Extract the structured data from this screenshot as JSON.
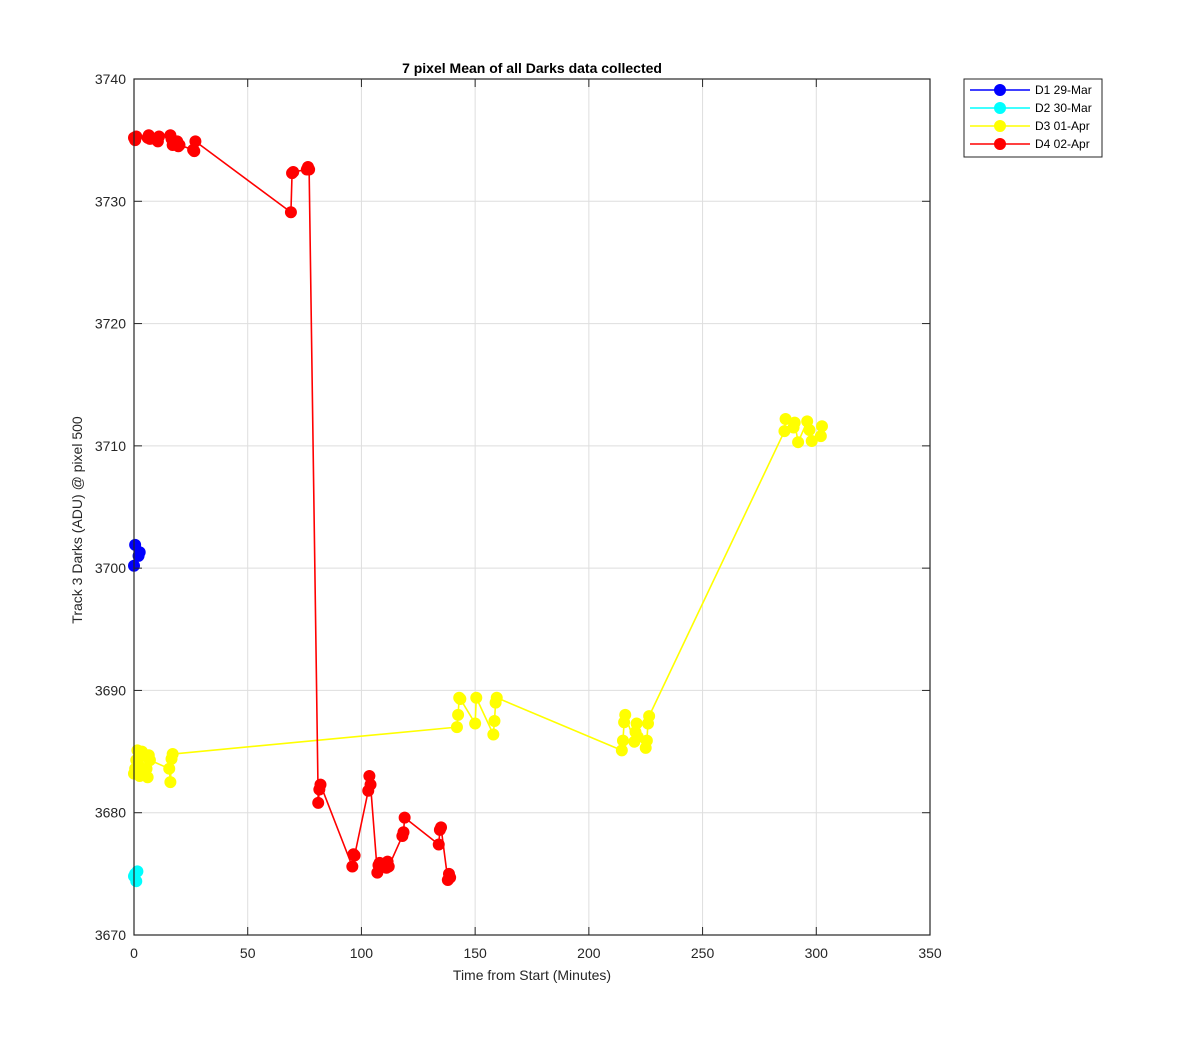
{
  "chart_data": {
    "type": "line",
    "title": "7 pixel Mean of all Darks data collected",
    "xlabel": "Time from Start (Minutes)",
    "ylabel": "Track 3 Darks (ADU) @ pixel 500",
    "xlim": [
      0,
      350
    ],
    "ylim": [
      3670,
      3740
    ],
    "xticks": [
      0,
      50,
      100,
      150,
      200,
      250,
      300,
      350
    ],
    "yticks": [
      3670,
      3680,
      3690,
      3700,
      3710,
      3720,
      3730,
      3740
    ],
    "grid": true,
    "legend_position": "outside-top-right",
    "series": [
      {
        "name": "D1 29-Mar",
        "color": "#0000ff",
        "x": [
          0,
          0.5,
          2,
          2.5
        ],
        "y": [
          3700.2,
          3701.9,
          3701.0,
          3701.3
        ]
      },
      {
        "name": "D2 30-Mar",
        "color": "#00ffff",
        "x": [
          0,
          0.5,
          1,
          1.5
        ],
        "y": [
          3674.8,
          3675.0,
          3674.4,
          3675.2
        ]
      },
      {
        "name": "D3 01-Apr",
        "color": "#ffff00",
        "x": [
          0,
          0.5,
          1,
          1.5,
          2,
          2.5,
          3,
          3.5,
          5.5,
          6,
          6.5,
          7,
          15.5,
          16,
          16.5,
          17,
          142,
          142.5,
          143,
          143.5,
          150,
          150.5,
          158,
          158.5,
          159,
          159.5,
          214.5,
          215,
          215.5,
          216,
          220,
          220.5,
          221,
          221.5,
          225,
          225.5,
          226,
          226.5,
          286,
          286.5,
          290,
          290.5,
          292,
          296,
          297,
          298,
          302,
          302.5
        ],
        "y": [
          3683.2,
          3683.6,
          3684.3,
          3685.1,
          3683.9,
          3683.0,
          3684.6,
          3685.0,
          3683.6,
          3682.9,
          3684.7,
          3684.3,
          3683.6,
          3682.5,
          3684.4,
          3684.8,
          3687.0,
          3688.0,
          3689.4,
          3689.3,
          3687.3,
          3689.4,
          3686.4,
          3687.5,
          3689.0,
          3689.4,
          3685.1,
          3685.9,
          3687.4,
          3688.0,
          3685.8,
          3686.6,
          3687.3,
          3686.2,
          3685.3,
          3685.9,
          3687.3,
          3687.9,
          3711.2,
          3712.2,
          3711.5,
          3711.9,
          3710.3,
          3712.0,
          3711.3,
          3710.4,
          3710.8,
          3711.6
        ]
      },
      {
        "name": "D4 02-Apr",
        "color": "#ff0000",
        "x": [
          0,
          0.5,
          1,
          6,
          6.5,
          7,
          10,
          10.5,
          11,
          16,
          16.5,
          17,
          19,
          19.5,
          20,
          26,
          26.5,
          27,
          69,
          69.5,
          70,
          76,
          76.5,
          77,
          81,
          81.5,
          82,
          96,
          96.5,
          97,
          103,
          103.5,
          104,
          107,
          107.5,
          108,
          111,
          111.5,
          112,
          118,
          118.5,
          119,
          134,
          134.5,
          135,
          138,
          138.5,
          139
        ],
        "y": [
          3735.2,
          3735.0,
          3735.3,
          3735.2,
          3735.4,
          3735.1,
          3735.0,
          3734.9,
          3735.3,
          3735.4,
          3735.1,
          3734.6,
          3734.9,
          3734.5,
          3734.6,
          3734.2,
          3734.1,
          3734.9,
          3729.1,
          3732.3,
          3732.4,
          3732.6,
          3732.8,
          3732.6,
          3680.8,
          3681.9,
          3682.3,
          3675.6,
          3676.6,
          3676.5,
          3681.8,
          3683.0,
          3682.3,
          3675.1,
          3675.7,
          3675.9,
          3675.5,
          3676.0,
          3675.6,
          3678.1,
          3678.4,
          3679.6,
          3677.4,
          3678.6,
          3678.8,
          3674.5,
          3675.0,
          3674.7
        ]
      }
    ]
  }
}
